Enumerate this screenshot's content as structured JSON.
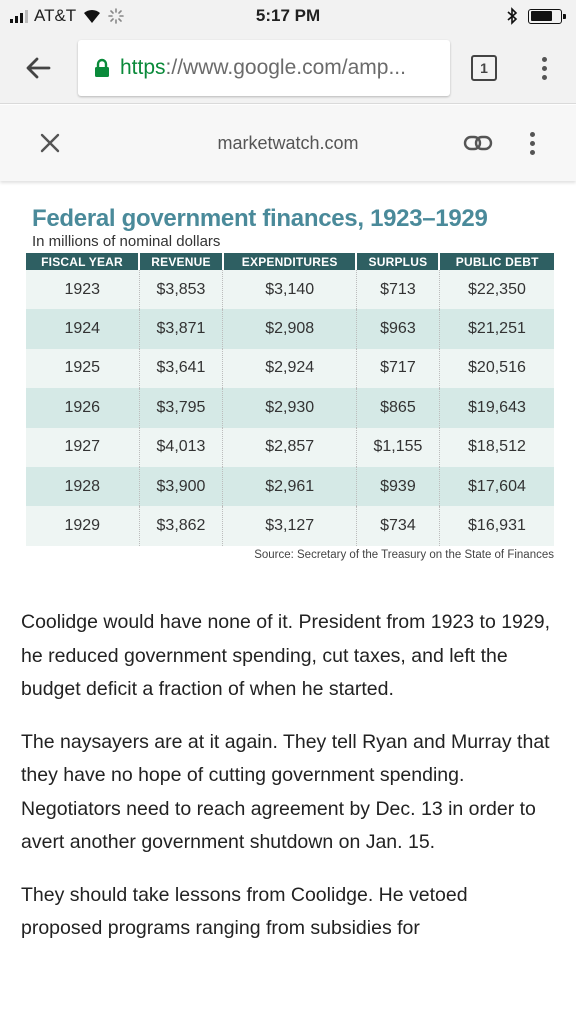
{
  "status_bar": {
    "carrier": "AT&T",
    "time": "5:17 PM",
    "battery_level": 0.75
  },
  "browser": {
    "url_scheme": "https",
    "url_rest": "://www.google.com/amp...",
    "tab_count": "1",
    "icons": [
      "back-arrow-icon",
      "lock-icon",
      "tab-switcher-icon",
      "overflow-menu-icon"
    ]
  },
  "amp_header": {
    "domain": "marketwatch.com",
    "icons": [
      "close-icon",
      "link-icon",
      "overflow-menu-icon"
    ]
  },
  "figure": {
    "title": "Federal government finances, 1923–1929",
    "subtitle": "In millions of nominal dollars",
    "columns": [
      "FISCAL YEAR",
      "REVENUE",
      "EXPENDITURES",
      "SURPLUS",
      "PUBLIC DEBT"
    ],
    "rows": [
      [
        "1923",
        "$3,853",
        "$3,140",
        "$713",
        "$22,350"
      ],
      [
        "1924",
        "$3,871",
        "$2,908",
        "$963",
        "$21,251"
      ],
      [
        "1925",
        "$3,641",
        "$2,924",
        "$717",
        "$20,516"
      ],
      [
        "1926",
        "$3,795",
        "$2,930",
        "$865",
        "$19,643"
      ],
      [
        "1927",
        "$4,013",
        "$2,857",
        "$1,155",
        "$18,512"
      ],
      [
        "1928",
        "$3,900",
        "$2,961",
        "$939",
        "$17,604"
      ],
      [
        "1929",
        "$3,862",
        "$3,127",
        "$734",
        "$16,931"
      ]
    ],
    "source": "Source: Secretary of the Treasury on the State of Finances",
    "colors": {
      "title": "#4a8a9a",
      "header_bg": "#2e5f62",
      "row_light": "#eef5f3",
      "row_dark": "#d5e9e6"
    }
  },
  "article": {
    "paragraphs": [
      "Coolidge would have none of it. President from 1923 to 1929, he reduced government spending, cut taxes, and left the budget deficit a fraction of when he started.",
      "The naysayers are at it again. They tell Ryan and Murray that they have no hope of cutting government spending. Negotiators need to reach agreement by Dec. 13 in order to avert another government shutdown on Jan. 15.",
      "They should take lessons from Coolidge. He vetoed proposed programs ranging from subsidies for"
    ]
  }
}
